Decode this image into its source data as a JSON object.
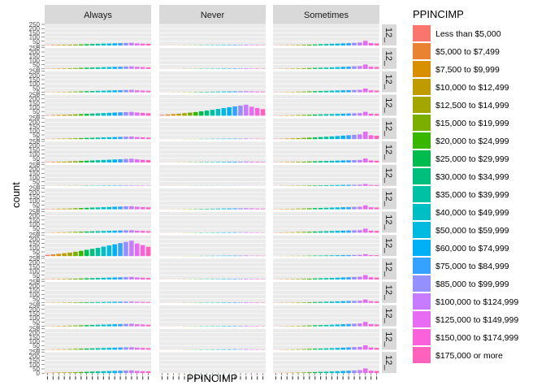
{
  "chart_data": {
    "type": "bar",
    "xlabel": "PPINCIMP",
    "ylabel": "count",
    "y_ticks": [
      "250",
      "200",
      "150",
      "100",
      "50",
      "0"
    ],
    "ylim": [
      0,
      250
    ],
    "grid": true,
    "legend": {
      "title": "PPINCIMP",
      "placement": "right",
      "entries": [
        {
          "label": "Less than $5,000",
          "color": "#F8766D"
        },
        {
          "label": "$5,000 to $7,499",
          "color": "#EA8331"
        },
        {
          "label": "$7,500 to $9,999",
          "color": "#D89000"
        },
        {
          "label": "$10,000 to $12,499",
          "color": "#C09B00"
        },
        {
          "label": "$12,500 to $14,999",
          "color": "#A3A500"
        },
        {
          "label": "$15,000 to $19,999",
          "color": "#7CAE00"
        },
        {
          "label": "$20,000 to $24,999",
          "color": "#39B600"
        },
        {
          "label": "$25,000 to $29,999",
          "color": "#00BB4E"
        },
        {
          "label": "$30,000 to $34,999",
          "color": "#00BF7D"
        },
        {
          "label": "$35,000 to $39,999",
          "color": "#00C1A3"
        },
        {
          "label": "$40,000 to $49,999",
          "color": "#00BFC4"
        },
        {
          "label": "$50,000 to $59,999",
          "color": "#00BAE0"
        },
        {
          "label": "$60,000 to $74,999",
          "color": "#00B0F6"
        },
        {
          "label": "$75,000 to $84,999",
          "color": "#35A2FF"
        },
        {
          "label": "$85,000 to $99,999",
          "color": "#9590FF"
        },
        {
          "label": "$100,000 to $124,999",
          "color": "#C77CFF"
        },
        {
          "label": "$125,000 to $149,999",
          "color": "#E76BF3"
        },
        {
          "label": "$150,000 to $174,999",
          "color": "#FA62DB"
        },
        {
          "label": "$175,000 or more",
          "color": "#FF62BC"
        }
      ]
    },
    "col_facets": [
      "Always",
      "Never",
      "Sometimes"
    ],
    "row_facet_labels": [
      "12_",
      "12_",
      "12_",
      "12_",
      "12_",
      "12_",
      "12_",
      "12_",
      "12_",
      "12_",
      "12_",
      "12_",
      "12_",
      "12_",
      "12_"
    ],
    "panels": [
      [
        [
          4,
          6,
          7,
          8,
          9,
          11,
          13,
          15,
          18,
          20,
          22,
          24,
          26,
          28,
          30,
          32,
          25,
          22,
          20
        ],
        [
          3,
          4,
          5,
          6,
          8,
          10,
          12,
          14,
          16,
          18,
          20,
          22,
          24,
          26,
          28,
          30,
          24,
          21,
          18
        ],
        [
          3,
          3,
          4,
          5,
          7,
          9,
          11,
          13,
          15,
          17,
          19,
          21,
          23,
          25,
          27,
          29,
          23,
          20,
          17
        ],
        [
          5,
          7,
          9,
          11,
          13,
          16,
          19,
          22,
          25,
          28,
          31,
          34,
          37,
          40,
          43,
          46,
          38,
          33,
          29
        ],
        [
          3,
          4,
          5,
          6,
          8,
          10,
          12,
          14,
          16,
          18,
          20,
          22,
          24,
          26,
          28,
          30,
          24,
          21,
          18
        ],
        [
          5,
          7,
          8,
          10,
          13,
          15,
          18,
          21,
          24,
          27,
          30,
          33,
          36,
          39,
          42,
          45,
          37,
          32,
          28
        ],
        [
          1,
          1,
          1,
          1,
          2,
          2,
          2,
          3,
          3,
          3,
          4,
          4,
          4,
          5,
          5,
          5,
          4,
          4,
          3
        ],
        [
          4,
          5,
          7,
          8,
          10,
          13,
          15,
          17,
          20,
          22,
          25,
          27,
          30,
          32,
          35,
          37,
          30,
          26,
          23
        ],
        [
          3,
          4,
          5,
          6,
          8,
          10,
          12,
          14,
          16,
          18,
          20,
          22,
          24,
          26,
          28,
          30,
          24,
          21,
          18
        ],
        [
          14,
          20,
          26,
          34,
          42,
          52,
          62,
          74,
          86,
          98,
          112,
          126,
          140,
          154,
          168,
          182,
          150,
          130,
          110
        ],
        [
          3,
          4,
          5,
          6,
          8,
          10,
          12,
          14,
          16,
          18,
          20,
          22,
          24,
          26,
          28,
          30,
          24,
          21,
          18
        ],
        [
          2,
          3,
          3,
          4,
          5,
          6,
          7,
          8,
          9,
          10,
          11,
          12,
          13,
          14,
          15,
          16,
          13,
          11,
          10
        ],
        [
          3,
          4,
          5,
          6,
          8,
          10,
          12,
          14,
          16,
          18,
          20,
          22,
          24,
          26,
          28,
          30,
          24,
          21,
          18
        ],
        [
          3,
          4,
          5,
          6,
          8,
          10,
          12,
          14,
          16,
          18,
          20,
          22,
          24,
          26,
          28,
          30,
          24,
          21,
          18
        ],
        [
          4,
          6,
          7,
          8,
          9,
          11,
          13,
          15,
          18,
          20,
          22,
          24,
          26,
          28,
          30,
          32,
          25,
          22,
          20
        ]
      ],
      [
        [
          1,
          1,
          1,
          1,
          2,
          2,
          2,
          3,
          3,
          4,
          4,
          5,
          5,
          6,
          6,
          7,
          5,
          5,
          4
        ],
        [
          1,
          1,
          1,
          1,
          2,
          2,
          2,
          3,
          3,
          4,
          4,
          5,
          5,
          6,
          6,
          7,
          5,
          5,
          4
        ],
        [
          1,
          1,
          2,
          2,
          3,
          3,
          4,
          5,
          6,
          7,
          8,
          9,
          10,
          11,
          12,
          13,
          11,
          9,
          8
        ],
        [
          10,
          14,
          19,
          24,
          30,
          37,
          44,
          52,
          61,
          70,
          80,
          90,
          100,
          110,
          120,
          130,
          106,
          92,
          78
        ],
        [
          1,
          1,
          1,
          1,
          2,
          2,
          2,
          3,
          3,
          4,
          4,
          5,
          5,
          6,
          6,
          7,
          5,
          5,
          4
        ],
        [
          1,
          1,
          1,
          2,
          2,
          3,
          3,
          4,
          5,
          5,
          6,
          7,
          8,
          9,
          10,
          11,
          9,
          8,
          7
        ],
        [
          1,
          1,
          1,
          1,
          1,
          1,
          1,
          1,
          1,
          1,
          1,
          1,
          1,
          1,
          1,
          1,
          1,
          1,
          1
        ],
        [
          1,
          1,
          2,
          2,
          3,
          3,
          4,
          5,
          6,
          7,
          8,
          9,
          10,
          11,
          12,
          13,
          11,
          9,
          8
        ],
        [
          1,
          1,
          1,
          1,
          2,
          2,
          2,
          3,
          3,
          4,
          4,
          5,
          5,
          6,
          6,
          7,
          5,
          5,
          4
        ],
        [
          1,
          1,
          1,
          1,
          2,
          2,
          2,
          3,
          3,
          4,
          4,
          5,
          5,
          6,
          6,
          7,
          5,
          5,
          4
        ],
        [
          1,
          1,
          1,
          1,
          2,
          2,
          2,
          3,
          3,
          4,
          4,
          5,
          5,
          6,
          6,
          7,
          5,
          5,
          4
        ],
        [
          1,
          1,
          1,
          1,
          2,
          2,
          2,
          3,
          3,
          4,
          4,
          5,
          5,
          6,
          6,
          7,
          5,
          5,
          4
        ],
        [
          1,
          1,
          1,
          1,
          2,
          2,
          2,
          3,
          3,
          4,
          4,
          5,
          5,
          6,
          6,
          7,
          5,
          5,
          4
        ],
        [
          1,
          1,
          1,
          1,
          2,
          2,
          2,
          3,
          3,
          4,
          4,
          5,
          5,
          6,
          6,
          7,
          5,
          5,
          4
        ],
        [
          1,
          1,
          1,
          1,
          1,
          1,
          1,
          1,
          1,
          1,
          1,
          1,
          1,
          1,
          1,
          1,
          1,
          1,
          1
        ]
      ],
      [
        [
          2,
          3,
          4,
          5,
          6,
          8,
          10,
          12,
          15,
          17,
          20,
          22,
          25,
          28,
          31,
          35,
          55,
          28,
          24
        ],
        [
          2,
          3,
          4,
          5,
          6,
          8,
          10,
          12,
          14,
          16,
          18,
          21,
          24,
          27,
          30,
          33,
          52,
          26,
          22
        ],
        [
          3,
          3,
          4,
          5,
          7,
          9,
          11,
          13,
          15,
          17,
          19,
          21,
          23,
          25,
          27,
          29,
          45,
          23,
          20
        ],
        [
          3,
          4,
          5,
          6,
          8,
          10,
          12,
          14,
          16,
          18,
          20,
          22,
          24,
          26,
          28,
          30,
          47,
          24,
          21
        ],
        [
          4,
          5,
          7,
          9,
          11,
          14,
          17,
          20,
          24,
          28,
          32,
          36,
          41,
          46,
          51,
          56,
          88,
          46,
          40
        ],
        [
          3,
          4,
          5,
          6,
          8,
          10,
          12,
          14,
          16,
          18,
          20,
          22,
          24,
          26,
          28,
          30,
          48,
          24,
          21
        ],
        [
          1,
          2,
          2,
          3,
          3,
          4,
          5,
          6,
          7,
          8,
          9,
          10,
          11,
          12,
          13,
          14,
          22,
          11,
          10
        ],
        [
          3,
          4,
          5,
          6,
          8,
          10,
          12,
          14,
          16,
          18,
          20,
          22,
          24,
          26,
          28,
          30,
          47,
          24,
          21
        ],
        [
          3,
          4,
          5,
          6,
          8,
          10,
          12,
          14,
          16,
          18,
          20,
          22,
          24,
          26,
          28,
          30,
          48,
          24,
          21
        ],
        [
          1,
          2,
          2,
          3,
          3,
          4,
          5,
          6,
          7,
          8,
          9,
          10,
          11,
          12,
          13,
          14,
          22,
          11,
          10
        ],
        [
          2,
          3,
          4,
          5,
          6,
          8,
          10,
          12,
          14,
          16,
          18,
          21,
          24,
          27,
          30,
          33,
          52,
          26,
          22
        ],
        [
          2,
          3,
          3,
          4,
          5,
          6,
          8,
          10,
          12,
          14,
          16,
          18,
          20,
          22,
          24,
          26,
          40,
          20,
          18
        ],
        [
          2,
          3,
          4,
          5,
          6,
          8,
          10,
          12,
          14,
          16,
          18,
          21,
          24,
          27,
          30,
          33,
          52,
          26,
          22
        ],
        [
          2,
          3,
          4,
          5,
          6,
          8,
          10,
          12,
          14,
          16,
          18,
          21,
          24,
          27,
          30,
          33,
          52,
          26,
          22
        ],
        [
          2,
          3,
          4,
          5,
          6,
          8,
          10,
          12,
          15,
          17,
          20,
          22,
          25,
          28,
          31,
          35,
          55,
          28,
          24
        ]
      ]
    ]
  }
}
